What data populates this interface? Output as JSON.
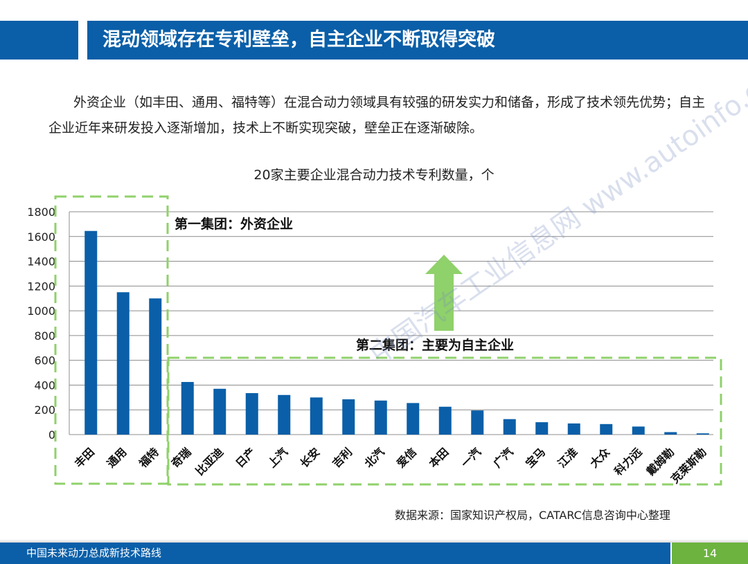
{
  "header": {
    "title": "混动领域存在专利壁垒，自主企业不断取得突破"
  },
  "intro": {
    "text": "外资企业（如丰田、通用、福特等）在混合动力领域具有较强的研发实力和储备，形成了技术领先优势；自主企业近年来研发投入逐渐增加，技术上不断实现突破，壁垒正在逐渐破除。"
  },
  "chart_data": {
    "type": "bar",
    "title": "20家主要企业混合动力技术专利数量，个",
    "categories": [
      "丰田",
      "通用",
      "福特",
      "奇瑞",
      "比亚迪",
      "日产",
      "上汽",
      "长安",
      "吉利",
      "北汽",
      "爱信",
      "本田",
      "一汽",
      "广汽",
      "宝马",
      "江淮",
      "大众",
      "科力远",
      "戴姆勒",
      "克莱斯勒"
    ],
    "values": [
      1645,
      1150,
      1100,
      425,
      370,
      335,
      320,
      300,
      285,
      275,
      255,
      225,
      195,
      125,
      100,
      90,
      85,
      65,
      20,
      10
    ],
    "ylim": [
      0,
      1800
    ],
    "yticks": [
      0,
      200,
      400,
      600,
      800,
      1000,
      1200,
      1400,
      1600,
      1800
    ],
    "grid": true,
    "bar_color": "#0a5fa8",
    "annotations": {
      "group1": "第一集团：外资企业",
      "group2": "第二集团：主要为自主企业"
    },
    "group_box_color": "#8fd16a",
    "arrow_color": "#8fd16a"
  },
  "source": "数据来源：国家知识产权局，CATARC信息咨询中心整理",
  "footer": {
    "text": "中国未来动力总成新技术路线",
    "page": "14"
  },
  "watermark": "中国汽车工业信息网 www.autoinfo.org.cn"
}
